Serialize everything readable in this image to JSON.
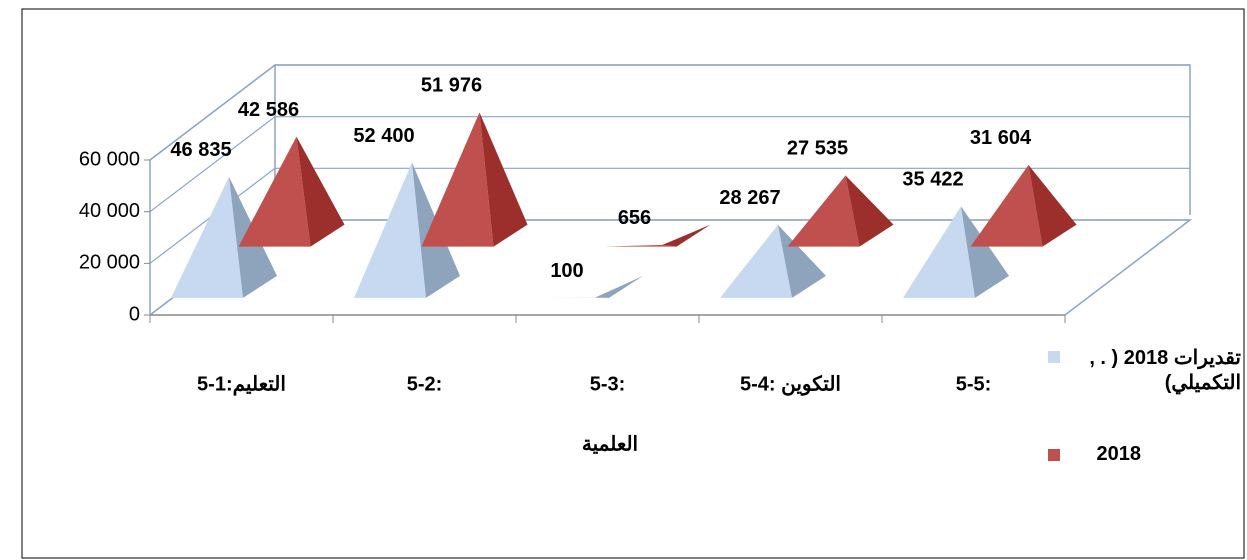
{
  "chart_data": {
    "type": "pyramid3d",
    "categories": [
      "5-1:التعليم",
      "5-2:",
      "5-3:",
      "5-4: التكوين",
      "5-5:"
    ],
    "x_label": "العلمية",
    "series": [
      {
        "name": "تقديرات 2018 ( . , التكميلي)",
        "color": "#c6d9f1",
        "values": [
          46835,
          52400,
          100,
          28267,
          35422
        ],
        "value_labels": [
          "46 835",
          "52 400",
          "100",
          "28 267",
          "35 422"
        ]
      },
      {
        "name": "2018",
        "color": "#c0504d",
        "values": [
          42586,
          51976,
          656,
          27535,
          31604
        ],
        "value_labels": [
          "42 586",
          "51 976",
          "656",
          "27 535",
          "31 604"
        ]
      }
    ],
    "ylim": [
      0,
      60000
    ],
    "yticks": [
      0,
      {
        "value": 20000,
        "label": "20 000"
      },
      {
        "value": 40000,
        "label": "40 000"
      },
      {
        "value": 60000,
        "label": "60 000"
      }
    ],
    "grid": true,
    "legend": "right"
  }
}
